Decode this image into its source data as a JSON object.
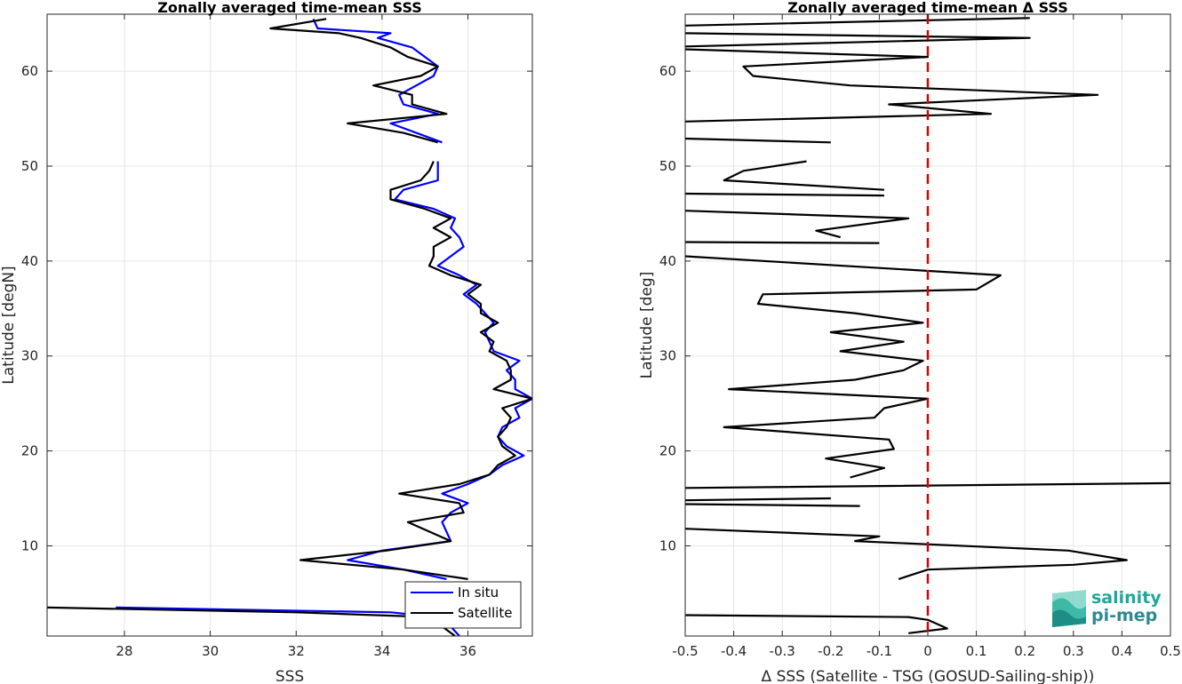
{
  "figure": {
    "brand_line1": "salinity",
    "brand_line2": "pi-mep",
    "brand_icon": "wave-logo-icon"
  },
  "chart_data": [
    {
      "type": "line",
      "title": "Zonally averaged time-mean SSS",
      "xlabel": "SSS",
      "ylabel": "Latitude [degN]",
      "xlim": [
        26.2,
        37.5
      ],
      "ylim": [
        0.5,
        66
      ],
      "xticks": [
        28,
        30,
        32,
        34,
        36
      ],
      "yticks": [
        10,
        20,
        30,
        40,
        50,
        60
      ],
      "grid": true,
      "legend_position": "bottom-right",
      "series": [
        {
          "name": "In situ",
          "color": "#0000ff",
          "points": [
            [
              35.8,
              0.5
            ],
            [
              35.6,
              1.5
            ],
            [
              35.3,
              2.5
            ],
            [
              34.2,
              3.0
            ],
            [
              27.8,
              3.5
            ],
            null,
            [
              35.5,
              6.5
            ],
            [
              34.5,
              7.5
            ],
            [
              33.2,
              8.5
            ],
            [
              34,
              9.5
            ],
            [
              35.6,
              10.5
            ],
            [
              35.4,
              12.5
            ],
            [
              35.6,
              13.5
            ],
            [
              36,
              14.5
            ],
            [
              35.4,
              15.5
            ],
            [
              36,
              16.5
            ],
            [
              36.5,
              17.5
            ],
            [
              36.8,
              18.5
            ],
            [
              37.3,
              19.5
            ],
            [
              36.9,
              20.5
            ],
            [
              36.7,
              21.5
            ],
            [
              36.8,
              22.5
            ],
            [
              37.2,
              23.5
            ],
            [
              37.1,
              24.5
            ],
            [
              37.5,
              25.5
            ],
            [
              37.1,
              26.5
            ],
            [
              37.1,
              27.5
            ],
            [
              36.9,
              28.5
            ],
            [
              37.2,
              29.5
            ],
            [
              36.6,
              30.5
            ],
            [
              36.5,
              31.5
            ],
            [
              36.4,
              32.5
            ],
            [
              36.6,
              33.5
            ],
            [
              36.4,
              34.5
            ],
            [
              36.2,
              35.5
            ],
            [
              35.9,
              36.5
            ],
            [
              36.2,
              37.5
            ],
            [
              35.8,
              38.5
            ],
            [
              35.3,
              39.5
            ],
            [
              35.6,
              40.5
            ],
            [
              35.9,
              41.5
            ],
            [
              35.8,
              42.5
            ],
            [
              35.6,
              43.5
            ],
            [
              35.7,
              44.5
            ],
            [
              35.2,
              45.5
            ],
            [
              34.3,
              46.5
            ],
            [
              34.5,
              47.5
            ],
            [
              35.3,
              48.5
            ],
            [
              35.3,
              49.5
            ],
            [
              35.3,
              50.5
            ],
            null,
            [
              35.4,
              52.5
            ],
            [
              34.2,
              54.5
            ],
            [
              35.3,
              55.5
            ],
            [
              34.5,
              56.5
            ],
            [
              34.4,
              57.5
            ],
            [
              34.8,
              58.5
            ],
            [
              35.2,
              59.5
            ],
            [
              35.3,
              60.5
            ],
            [
              35,
              61.5
            ],
            [
              34.7,
              62.5
            ],
            [
              33.9,
              63.5
            ],
            [
              34.2,
              64.0
            ],
            [
              32.5,
              64.5
            ],
            [
              32.4,
              65.5
            ]
          ]
        },
        {
          "name": "Satellite",
          "color": "#000000",
          "points": [
            [
              35.7,
              0.5
            ],
            [
              35.4,
              1.5
            ],
            [
              35.1,
              2.5
            ],
            [
              32,
              3.0
            ],
            [
              26.2,
              3.5
            ],
            null,
            [
              36,
              6.5
            ],
            [
              34.5,
              7.5
            ],
            [
              32.1,
              8.5
            ],
            [
              34.1,
              9.5
            ],
            [
              35.6,
              10.5
            ],
            [
              34.6,
              12.5
            ],
            [
              35.9,
              13.5
            ],
            [
              35.8,
              14.5
            ],
            [
              34.4,
              15.5
            ],
            [
              35.8,
              16.5
            ],
            [
              36.5,
              17.5
            ],
            [
              36.7,
              18.5
            ],
            [
              37.1,
              19.5
            ],
            [
              36.8,
              20.5
            ],
            [
              36.7,
              21.5
            ],
            [
              36.9,
              22.5
            ],
            [
              37,
              23.5
            ],
            [
              36.8,
              24.5
            ],
            [
              37.5,
              25.5
            ],
            [
              36.6,
              26.5
            ],
            [
              37,
              27.5
            ],
            [
              37,
              28.5
            ],
            [
              36.9,
              29.5
            ],
            [
              36.5,
              30.5
            ],
            [
              36.6,
              31.5
            ],
            [
              36.3,
              32.5
            ],
            [
              36.7,
              33.5
            ],
            [
              36.3,
              34.5
            ],
            [
              36.3,
              35.5
            ],
            [
              36,
              36.5
            ],
            [
              36.3,
              37.5
            ],
            [
              35.6,
              38.5
            ],
            [
              35.1,
              39.5
            ],
            [
              35.2,
              40.5
            ],
            [
              35.2,
              41.5
            ],
            [
              35.6,
              42.5
            ],
            [
              35.2,
              43.5
            ],
            [
              35.6,
              44.5
            ],
            [
              35,
              45.5
            ],
            [
              34.2,
              46.5
            ],
            [
              34.2,
              47.5
            ],
            [
              34.9,
              48.5
            ],
            [
              35.1,
              49.5
            ],
            [
              35.2,
              50.5
            ],
            null,
            [
              35.3,
              52.5
            ],
            [
              34.5,
              53.5
            ],
            [
              33.2,
              54.5
            ],
            [
              35.5,
              55.5
            ],
            [
              34.7,
              56.5
            ],
            [
              34.7,
              57.5
            ],
            [
              33.8,
              58.5
            ],
            [
              34.9,
              59.5
            ],
            [
              35.3,
              60.5
            ],
            [
              34.6,
              61.5
            ],
            [
              34.2,
              62.5
            ],
            [
              33.5,
              63.5
            ],
            [
              33.0,
              64.0
            ],
            [
              31.4,
              64.5
            ],
            [
              32.7,
              65.5
            ]
          ]
        }
      ],
      "legend": [
        {
          "name": "In situ",
          "color": "#0000ff"
        },
        {
          "name": "Satellite",
          "color": "#000000"
        }
      ]
    },
    {
      "type": "line",
      "title": "Zonally averaged time-mean Δ SSS",
      "xlabel": "Δ SSS (Satellite - TSG (GOSUD-Sailing-ship))",
      "ylabel": "Latitude [deg]",
      "xlim": [
        -0.5,
        0.5
      ],
      "ylim": [
        0.5,
        66
      ],
      "xticks": [
        -0.5,
        -0.4,
        -0.3,
        -0.2,
        -0.1,
        0,
        0.1,
        0.2,
        0.3,
        0.4,
        0.5
      ],
      "xtick_labels": [
        "-0.5",
        "-0.4",
        "-0.3",
        "-0.2",
        "-0.1",
        "0",
        "0.1",
        "0.2",
        "0.3",
        "0.4",
        "0.5"
      ],
      "yticks": [
        10,
        20,
        30,
        40,
        50,
        60
      ],
      "grid": true,
      "reference_line": {
        "x": 0,
        "color": "#e00000",
        "style": "dashed"
      },
      "series": [
        {
          "color": "#000000",
          "points": [
            [
              -0.04,
              0.8
            ],
            [
              0.04,
              1.3
            ],
            [
              0,
              2.2
            ],
            [
              -0.04,
              2.5
            ],
            [
              -0.5,
              2.7
            ],
            null,
            [
              -0.06,
              6.5
            ],
            [
              0,
              7.5
            ],
            [
              0.3,
              8.0
            ],
            [
              0.41,
              8.5
            ],
            [
              0.29,
              9.5
            ],
            [
              -0.15,
              10.5
            ],
            [
              -0.1,
              11.0
            ],
            [
              -0.5,
              11.8
            ],
            null,
            [
              -0.14,
              14.2
            ],
            [
              -0.5,
              14.4
            ],
            null,
            [
              -0.5,
              14.8
            ],
            [
              -0.2,
              15.0
            ],
            null,
            [
              -0.5,
              16.1
            ],
            [
              0.5,
              16.6
            ],
            null,
            [
              -0.16,
              17.2
            ],
            [
              -0.09,
              18.2
            ],
            [
              -0.21,
              19.2
            ],
            [
              -0.07,
              20.2
            ],
            [
              -0.08,
              21.2
            ],
            [
              -0.42,
              22.5
            ],
            [
              -0.11,
              23.5
            ],
            [
              -0.09,
              24.5
            ],
            [
              0,
              25.5
            ],
            [
              -0.41,
              26.5
            ],
            [
              -0.15,
              27.5
            ],
            [
              -0.05,
              28.5
            ],
            [
              -0.01,
              29.5
            ],
            [
              -0.18,
              30.5
            ],
            [
              -0.05,
              31.5
            ],
            [
              -0.2,
              32.5
            ],
            [
              -0.01,
              33.5
            ],
            [
              -0.15,
              34.5
            ],
            [
              -0.35,
              35.5
            ],
            [
              -0.34,
              36.5
            ],
            [
              0.1,
              37.0
            ],
            [
              0.15,
              38.5
            ],
            [
              -0.5,
              40.5
            ],
            null,
            [
              -0.1,
              41.9
            ],
            [
              -0.5,
              42.0
            ],
            null,
            [
              -0.18,
              42.5
            ],
            [
              -0.23,
              43.2
            ],
            [
              -0.04,
              44.5
            ],
            [
              -0.5,
              45.3
            ],
            null,
            [
              -0.09,
              46.9
            ],
            [
              -0.5,
              47.1
            ],
            null,
            [
              -0.09,
              47.5
            ],
            [
              -0.42,
              48.5
            ],
            [
              -0.38,
              49.5
            ],
            [
              -0.25,
              50.5
            ],
            null,
            [
              -0.2,
              52.5
            ],
            [
              -0.5,
              52.9
            ],
            null,
            [
              -0.5,
              54.7
            ],
            [
              0.13,
              55.5
            ],
            [
              -0.08,
              56.5
            ],
            [
              0.35,
              57.5
            ],
            [
              -0.16,
              58.5
            ],
            [
              -0.36,
              59.5
            ],
            [
              -0.38,
              60.5
            ],
            [
              0,
              61.5
            ],
            [
              -0.5,
              62.3
            ],
            null,
            [
              -0.5,
              62.6
            ],
            [
              0.21,
              63.5
            ],
            [
              -0.5,
              64.0
            ],
            null,
            [
              -0.5,
              64.8
            ],
            [
              0.21,
              65.6
            ]
          ]
        }
      ]
    }
  ]
}
